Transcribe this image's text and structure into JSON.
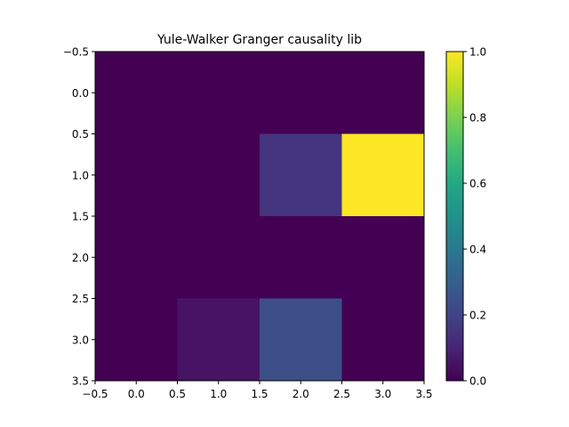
{
  "chart_data": {
    "type": "heatmap",
    "title": "Yule-Walker Granger causality lib",
    "xlabel": "",
    "ylabel": "",
    "xlim": [
      -0.5,
      3.5
    ],
    "ylim": [
      3.5,
      -0.5
    ],
    "x_ticks": [
      "−0.5",
      "0.0",
      "0.5",
      "1.0",
      "1.5",
      "2.0",
      "2.5",
      "3.0",
      "3.5"
    ],
    "y_ticks": [
      "−0.5",
      "0.0",
      "0.5",
      "1.0",
      "1.5",
      "2.0",
      "2.5",
      "3.0",
      "3.5"
    ],
    "matrix": [
      [
        0.0,
        0.0,
        0.0,
        0.0
      ],
      [
        0.0,
        0.0,
        0.15,
        1.0
      ],
      [
        0.0,
        0.0,
        0.0,
        0.0
      ],
      [
        0.0,
        0.05,
        0.24,
        0.0
      ]
    ],
    "colormap": "viridis",
    "colorbar": {
      "range": [
        0.0,
        1.0
      ],
      "ticks": [
        "0.0",
        "0.2",
        "0.4",
        "0.6",
        "0.8",
        "1.0"
      ]
    },
    "grid": false
  }
}
